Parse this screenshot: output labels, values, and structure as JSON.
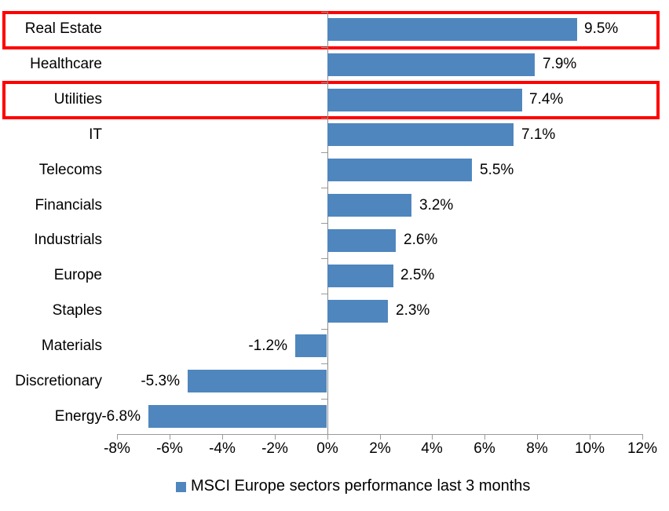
{
  "chart_data": {
    "type": "bar",
    "orientation": "horizontal",
    "title": "",
    "xlabel": "",
    "ylabel": "",
    "categories": [
      "Real Estate",
      "Healthcare",
      "Utilities",
      "IT",
      "Telecoms",
      "Financials",
      "Industrials",
      "Europe",
      "Staples",
      "Materials",
      "Discretionary",
      "Energy"
    ],
    "values": [
      9.5,
      7.9,
      7.4,
      7.1,
      5.5,
      3.2,
      2.6,
      2.5,
      2.3,
      -1.2,
      -5.3,
      -6.8
    ],
    "data_labels": [
      "9.5%",
      "7.9%",
      "7.4%",
      "7.1%",
      "5.5%",
      "3.2%",
      "2.6%",
      "2.5%",
      "2.3%",
      "-1.2%",
      "-5.3%",
      "-6.8%"
    ],
    "x_tick_labels": [
      "-8%",
      "-6%",
      "-4%",
      "-2%",
      "0%",
      "2%",
      "4%",
      "6%",
      "8%",
      "10%",
      "12%"
    ],
    "x_tick_values": [
      -8,
      -6,
      -4,
      -2,
      0,
      2,
      4,
      6,
      8,
      10,
      12
    ],
    "xlim": [
      -8,
      12
    ],
    "grid": "off",
    "legend": "MSCI Europe sectors performance last 3 months",
    "legend_position": "bottom",
    "bar_color": "#4F86BE",
    "axis_color": "#9a9a9a",
    "highlight_box_color": "#FF0000",
    "highlighted_categories": [
      "Real Estate",
      "Utilities"
    ]
  }
}
